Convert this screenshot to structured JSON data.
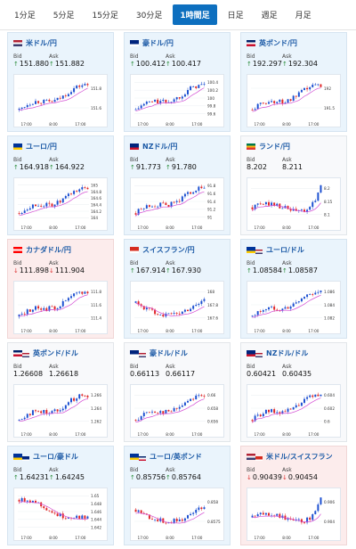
{
  "tabs": [
    {
      "label": "1分足"
    },
    {
      "label": "5分足"
    },
    {
      "label": "15分足"
    },
    {
      "label": "30分足"
    },
    {
      "label": "1時間足"
    },
    {
      "label": "日足"
    },
    {
      "label": "週足"
    },
    {
      "label": "月足"
    }
  ],
  "active_tab": "1時間足",
  "labels": {
    "bid": "Bid",
    "ask": "Ask"
  },
  "colors": {
    "up_candle": "#1b4fd1",
    "down_candle": "#e02626",
    "ma_line": "#d34bd3",
    "pair_text": "#1c5aa6",
    "tab_active": "#0d6fbf"
  },
  "cards": [
    {
      "name": "米ドル/円",
      "flag": "us",
      "bid": "151.880",
      "ask": "151.882",
      "dir": "up",
      "theme": "blue",
      "chart": {
        "x_ticks": [
          "17:00",
          "8:00",
          "17:00"
        ],
        "y_ticks": [
          "151.8",
          "151.6"
        ],
        "range": [
          151.5,
          151.95
        ],
        "trend": "up"
      }
    },
    {
      "name": "豪ドル/円",
      "flag": "au",
      "bid": "100.412",
      "ask": "100.417",
      "dir": "up",
      "theme": "blue",
      "chart": {
        "x_ticks": [
          "17:00",
          "8:00",
          "17:00"
        ],
        "y_ticks": [
          "100.4",
          "100.2",
          "100",
          "99.8",
          "99.6"
        ],
        "range": [
          99.5,
          100.5
        ],
        "trend": "up"
      }
    },
    {
      "name": "英ポンド/円",
      "flag": "gb",
      "bid": "192.297",
      "ask": "192.304",
      "dir": "up",
      "theme": "blue",
      "chart": {
        "x_ticks": [
          "17:00",
          "8:00",
          "17:00"
        ],
        "y_ticks": [
          "192",
          "191.5"
        ],
        "range": [
          191.3,
          192.4
        ],
        "trend": "up"
      }
    },
    {
      "name": "ユーロ/円",
      "flag": "eu",
      "bid": "164.918",
      "ask": "164.922",
      "dir": "up",
      "theme": "blue",
      "chart": {
        "x_ticks": [
          "17:00",
          "8:00",
          "17:00"
        ],
        "y_ticks": [
          "165",
          "164.8",
          "164.6",
          "164.4",
          "164.2",
          "164"
        ],
        "range": [
          163.9,
          165.05
        ],
        "trend": "up"
      }
    },
    {
      "name": "NZドル/円",
      "flag": "nz",
      "bid": "91.773",
      "ask": "91.780",
      "dir": "up",
      "theme": "blue",
      "chart": {
        "x_ticks": [
          "17:00",
          "8:00",
          "17:00"
        ],
        "y_ticks": [
          "91.8",
          "91.6",
          "91.4",
          "91.2",
          "91"
        ],
        "range": [
          90.9,
          91.9
        ],
        "trend": "up"
      }
    },
    {
      "name": "ランド/円",
      "flag": "za",
      "bid": "8.202",
      "ask": "8.211",
      "dir": "none",
      "theme": "white",
      "chart": {
        "x_ticks": [
          "17:00",
          "8:00",
          "17:00"
        ],
        "y_ticks": [
          "8.2",
          "8.15",
          "8.1"
        ],
        "range": [
          8.08,
          8.22
        ],
        "trend": "flatup"
      }
    },
    {
      "name": "カナダドル/円",
      "flag": "ca",
      "bid": "111.898",
      "ask": "111.904",
      "dir": "down",
      "theme": "red",
      "chart": {
        "x_ticks": [
          "17:00",
          "8:00",
          "17:00"
        ],
        "y_ticks": [
          "111.8",
          "111.6",
          "111.4"
        ],
        "range": [
          111.3,
          111.95
        ],
        "trend": "up"
      }
    },
    {
      "name": "スイスフラン/円",
      "flag": "ch",
      "bid": "167.914",
      "ask": "167.930",
      "dir": "up",
      "theme": "blue",
      "chart": {
        "x_ticks": [
          "17:00",
          "8:00",
          "17:00"
        ],
        "y_ticks": [
          "168",
          "167.8",
          "167.6"
        ],
        "range": [
          167.5,
          168.1
        ],
        "trend": "dip"
      }
    },
    {
      "name": "ユーロ/ドル",
      "flag": "eu-us",
      "bid": "1.08584",
      "ask": "1.08587",
      "dir": "up",
      "theme": "blue",
      "chart": {
        "x_ticks": [
          "17:00",
          "8:00",
          "17:00"
        ],
        "y_ticks": [
          "1.086",
          "1.084",
          "1.082"
        ],
        "range": [
          1.081,
          1.087
        ],
        "trend": "up"
      }
    },
    {
      "name": "英ポンド/ドル",
      "flag": "gb-us",
      "bid": "1.26608",
      "ask": "1.26618",
      "dir": "none",
      "theme": "white",
      "chart": {
        "x_ticks": [
          "17:00",
          "8:00",
          "17:00"
        ],
        "y_ticks": [
          "1.266",
          "1.264",
          "1.262"
        ],
        "range": [
          1.261,
          1.267
        ],
        "trend": "up"
      }
    },
    {
      "name": "豪ドル/ドル",
      "flag": "au-us",
      "bid": "0.66113",
      "ask": "0.66117",
      "dir": "none",
      "theme": "white",
      "chart": {
        "x_ticks": [
          "17:00",
          "8:00",
          "17:00"
        ],
        "y_ticks": [
          "0.66",
          "0.658",
          "0.656"
        ],
        "range": [
          0.655,
          0.6615
        ],
        "trend": "up"
      }
    },
    {
      "name": "NZドル/ドル",
      "flag": "nz-us",
      "bid": "0.60421",
      "ask": "0.60435",
      "dir": "none",
      "theme": "white",
      "chart": {
        "x_ticks": [
          "17:00",
          "8:00",
          "17:00"
        ],
        "y_ticks": [
          "0.604",
          "0.602",
          "0.6"
        ],
        "range": [
          0.599,
          0.605
        ],
        "trend": "up"
      }
    },
    {
      "name": "ユーロ/豪ドル",
      "flag": "eu-au",
      "bid": "1.64231",
      "ask": "1.64245",
      "dir": "up",
      "theme": "blue",
      "chart": {
        "x_ticks": [
          "17:00",
          "8:00",
          "17:00"
        ],
        "y_ticks": [
          "1.65",
          "1.648",
          "1.646",
          "1.644",
          "1.642"
        ],
        "range": [
          1.641,
          1.651
        ],
        "trend": "down"
      }
    },
    {
      "name": "ユーロ/英ポンド",
      "flag": "eu-gb",
      "bid": "0.85756",
      "ask": "0.85764",
      "dir": "up",
      "theme": "blue",
      "chart": {
        "x_ticks": [
          "17:00",
          "8:00",
          "17:00"
        ],
        "y_ticks": [
          "0.858",
          "0.8575"
        ],
        "range": [
          0.857,
          0.8585
        ],
        "trend": "dip"
      }
    },
    {
      "name": "米ドル/スイスフラン",
      "flag": "us-ch",
      "bid": "0.90439",
      "ask": "0.90454",
      "dir": "down",
      "theme": "red",
      "chart": {
        "x_ticks": [
          "17:00",
          "8:00",
          "17:00"
        ],
        "y_ticks": [
          "0.906",
          "0.904"
        ],
        "range": [
          0.9025,
          0.9065
        ],
        "trend": "flatup"
      }
    }
  ]
}
